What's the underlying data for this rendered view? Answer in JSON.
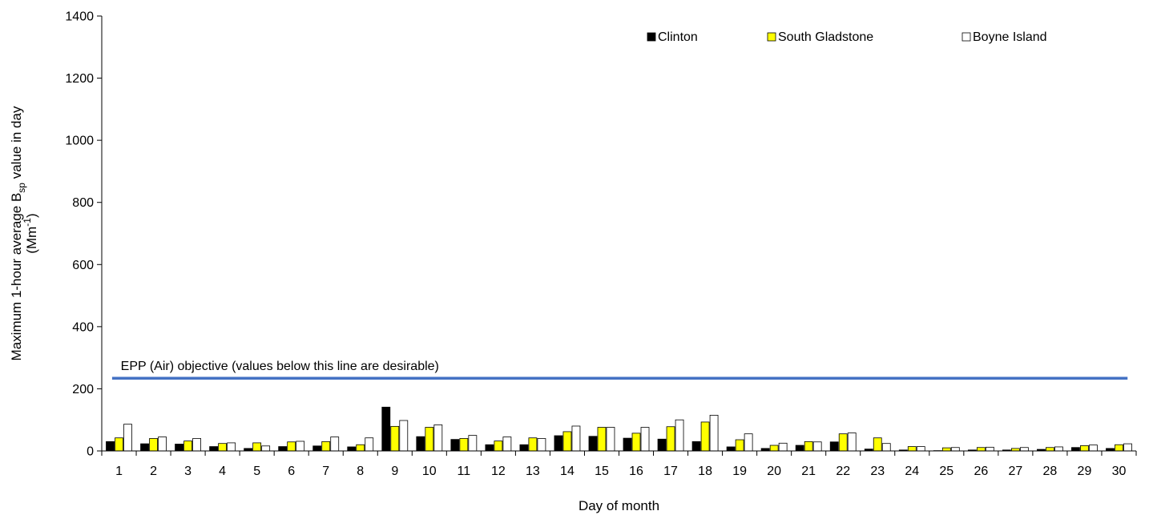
{
  "chart_data": {
    "type": "bar",
    "xlabel": "Day of month",
    "ylabel": {
      "line1_prefix": "Maximum 1-hour average B",
      "line1_sub": "sp",
      "line1_suffix": " value in day",
      "line2_prefix": "(Mm",
      "line2_sup": "-1",
      "line2_suffix": ")"
    },
    "ylim": [
      0,
      1400
    ],
    "yticks": [
      "0",
      "200",
      "400",
      "600",
      "800",
      "1000",
      "1200",
      "1400"
    ],
    "categories": [
      "1",
      "2",
      "3",
      "4",
      "5",
      "6",
      "7",
      "8",
      "9",
      "10",
      "11",
      "12",
      "13",
      "14",
      "15",
      "16",
      "17",
      "18",
      "19",
      "20",
      "21",
      "22",
      "23",
      "24",
      "25",
      "26",
      "27",
      "28",
      "29",
      "30"
    ],
    "legend_position": "top-right",
    "grid": false,
    "series": [
      {
        "name": "Clinton",
        "color": "#000000",
        "values": [
          30,
          23,
          22,
          14,
          8,
          14,
          16,
          13,
          141,
          46,
          37,
          20,
          20,
          49,
          47,
          41,
          38,
          30,
          13,
          8,
          18,
          29,
          6,
          3,
          1,
          3,
          3,
          5,
          11,
          8
        ]
      },
      {
        "name": "South Gladstone",
        "color": "#ffff00",
        "values": [
          42,
          40,
          32,
          24,
          26,
          29,
          30,
          20,
          79,
          76,
          40,
          32,
          42,
          62,
          76,
          57,
          78,
          93,
          36,
          18,
          30,
          55,
          42,
          14,
          10,
          11,
          8,
          11,
          17,
          20
        ]
      },
      {
        "name": "Boyne Island",
        "color": "#ffffff",
        "values": [
          86,
          45,
          40,
          26,
          16,
          31,
          45,
          42,
          98,
          84,
          50,
          45,
          40,
          80,
          76,
          76,
          100,
          115,
          55,
          25,
          29,
          58,
          24,
          14,
          11,
          12,
          11,
          13,
          19,
          23
        ]
      }
    ],
    "reference_line": {
      "value": 234,
      "label": "EPP (Air) objective (values below this line are desirable)",
      "color": "#4472c4"
    }
  }
}
